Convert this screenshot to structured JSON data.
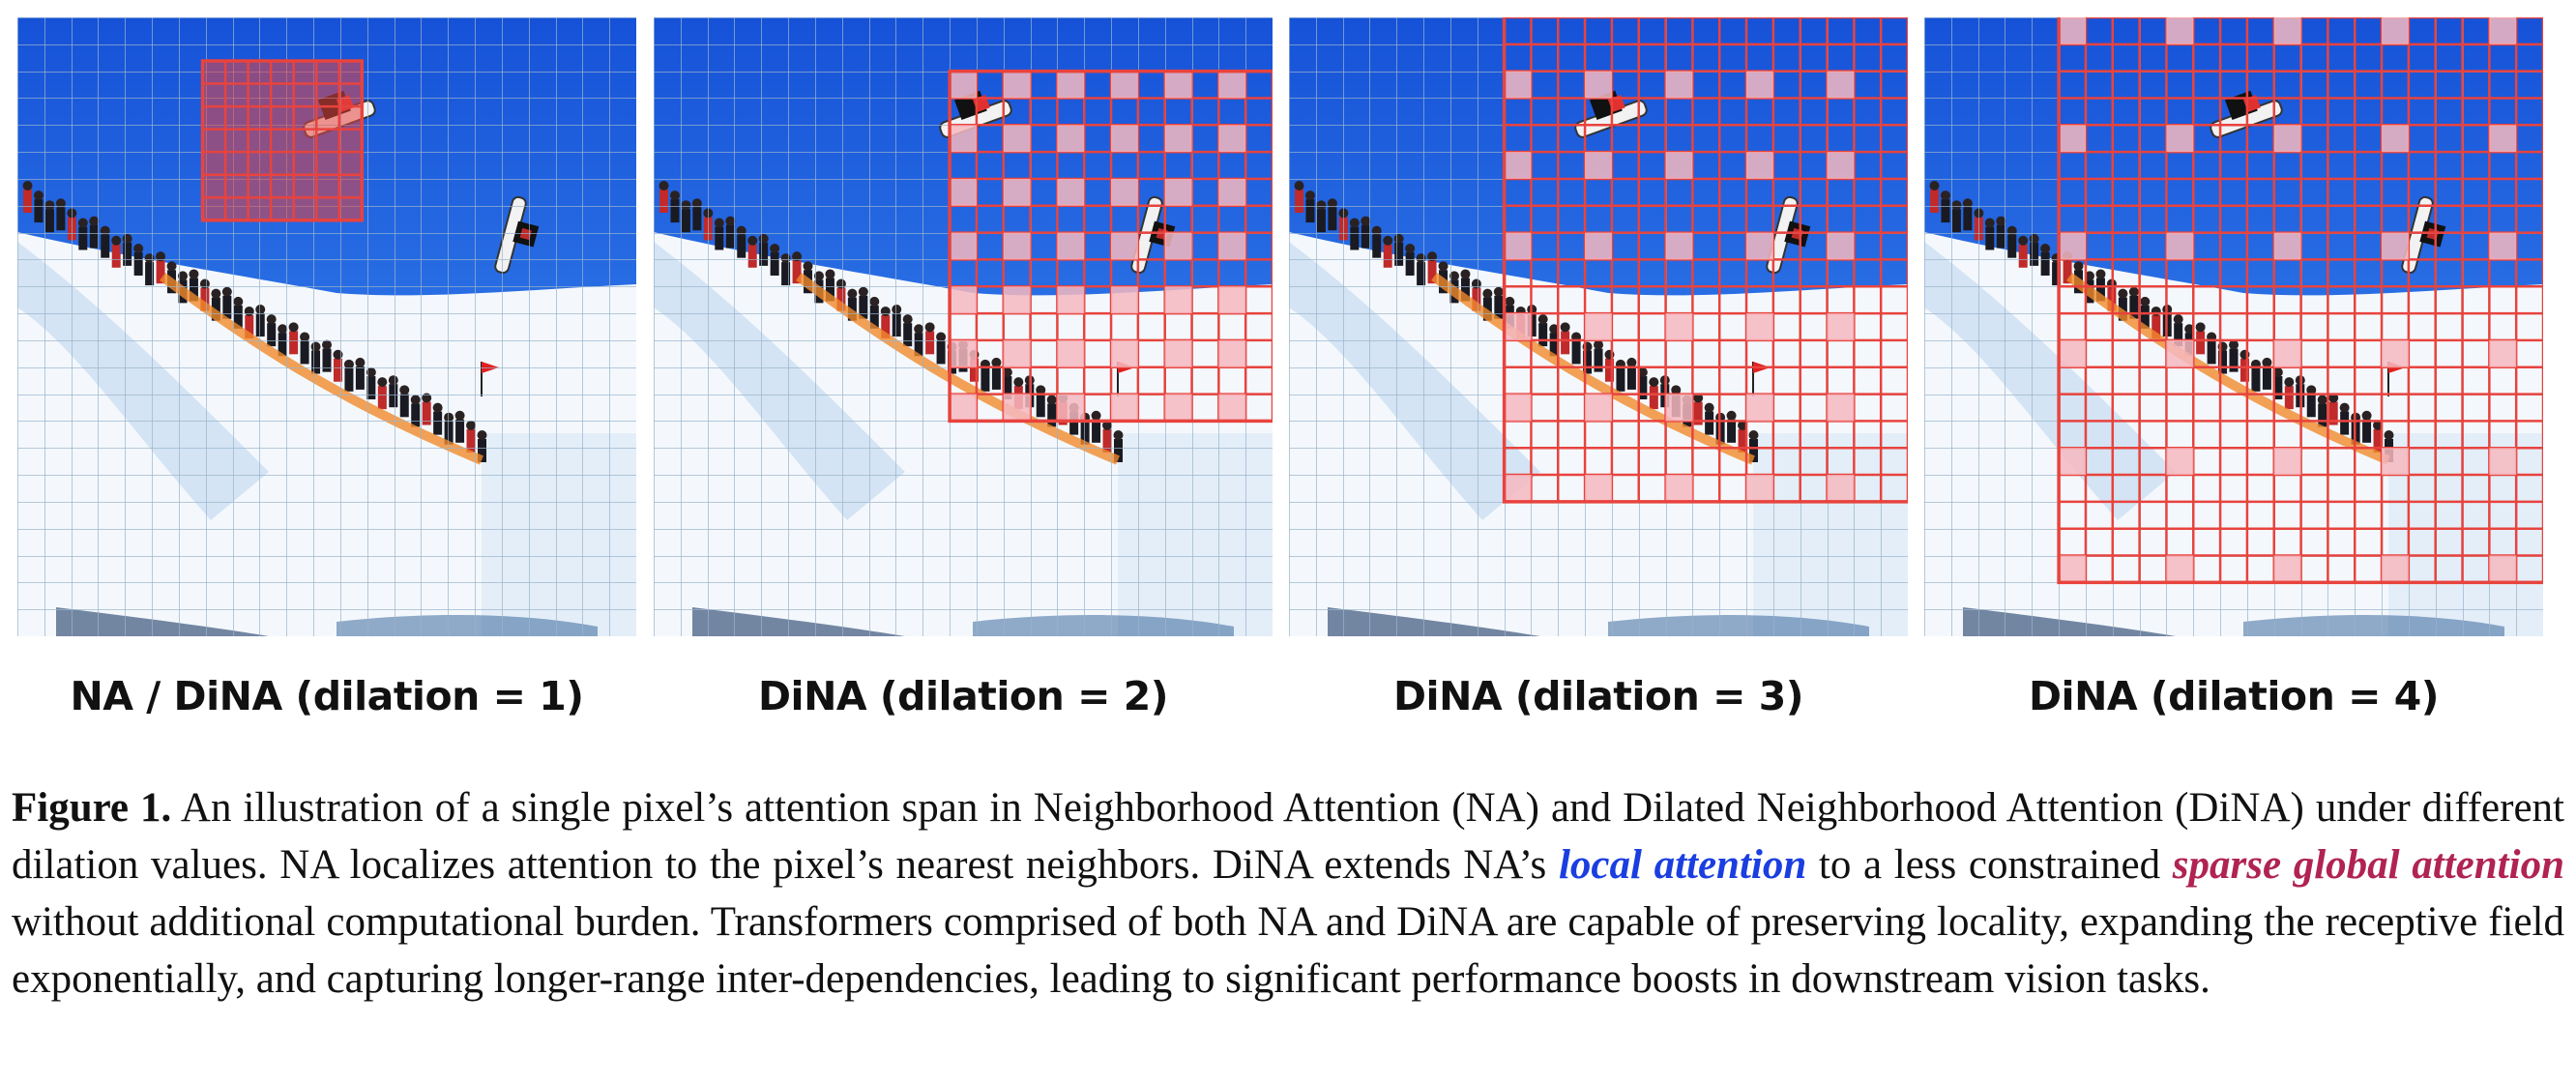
{
  "colors": {
    "sky_top": "#1652d8",
    "sky_bottom": "#3f8ff2",
    "snow": "#f4f8fc",
    "snow_shadow": "#b9d3ec",
    "grid_line": "#9ab4cc",
    "span_red": "#e8433e",
    "local_attention": "#1a3ee0",
    "sparse_global_attention": "#b02352"
  },
  "panels": [
    {
      "label": "NA / DiNA (dilation = 1)",
      "dilation": 1
    },
    {
      "label": "DiNA (dilation = 2)",
      "dilation": 2
    },
    {
      "label": "DiNA (dilation = 3)",
      "dilation": 3
    },
    {
      "label": "DiNA (dilation = 4)",
      "dilation": 4
    }
  ],
  "caption": {
    "figure_label": "Figure 1.",
    "text_1": " An illustration of a single pixel’s attention span in Neighborhood Attention (NA) and Dilated Neighborhood Attention (DiNA) under different dilation values.  NA localizes attention to the pixel’s nearest neighbors.  DiNA extends NA’s ",
    "highlight_local": "local attention",
    "text_2": " to a less constrained ",
    "highlight_sparse": "sparse global attention",
    "text_3": " without additional computational burden. Transformers comprised of both NA and DiNA are capable of preserving locality, expanding the receptive field exponentially, and capturing longer-range inter-dependencies, leading to significant performance boosts in downstream vision tasks."
  }
}
